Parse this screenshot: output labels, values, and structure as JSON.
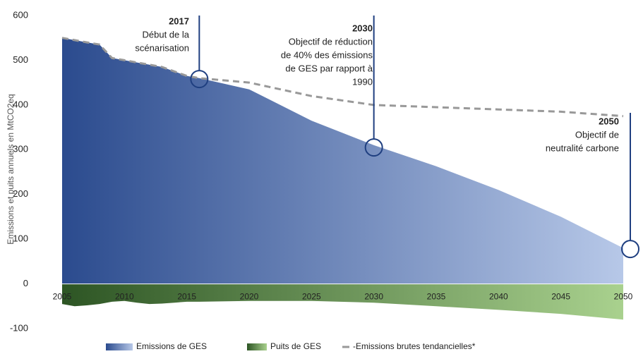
{
  "chart_data": {
    "type": "area",
    "y_axis_label": "Emissions et puits annuels en MtCO2eq",
    "x": [
      2005,
      2006,
      2007,
      2008,
      2009,
      2010,
      2011,
      2012,
      2013,
      2014,
      2015,
      2016,
      2020,
      2025,
      2030,
      2035,
      2040,
      2045,
      2050
    ],
    "series": [
      {
        "name": "Emissions de GES",
        "colors": [
          "#2b4b8e",
          "#b7c8e8"
        ],
        "style": "area",
        "values": [
          550,
          545,
          540,
          535,
          505,
          500,
          495,
          490,
          485,
          475,
          465,
          460,
          435,
          365,
          310,
          263,
          210,
          150,
          80
        ]
      },
      {
        "name": "Puits de GES",
        "colors": [
          "#2d5524",
          "#a9d18e"
        ],
        "style": "area",
        "values": [
          -45,
          -50,
          -48,
          -45,
          -40,
          -38,
          -42,
          -45,
          -44,
          -42,
          -40,
          -40,
          -38,
          -38,
          -42,
          -50,
          -58,
          -67,
          -80
        ]
      },
      {
        "name": "-Emissions brutes tendancielles*",
        "color": "#999999",
        "style": "dashed",
        "values": [
          550,
          545,
          540,
          535,
          505,
          500,
          495,
          490,
          485,
          475,
          465,
          460,
          450,
          420,
          400,
          395,
          390,
          385,
          375
        ]
      }
    ],
    "annotations": [
      {
        "year": "2017",
        "lines": [
          "Début de la",
          "scénarisation"
        ],
        "x": 2016,
        "y": 458
      },
      {
        "year": "2030",
        "lines": [
          "Objectif de réduction",
          "de 40% des émissions",
          "de GES par rapport à",
          "1990"
        ],
        "x": 2030,
        "y": 305
      },
      {
        "year": "2050",
        "lines": [
          "Objectif de",
          "neutralité carbone"
        ],
        "x": 2050,
        "y": 78
      }
    ],
    "xlim": [
      2005,
      2050
    ],
    "xticks": [
      2005,
      2010,
      2015,
      2020,
      2025,
      2030,
      2035,
      2040,
      2045,
      2050
    ],
    "ylim": [
      -100,
      600
    ],
    "yticks": [
      -100,
      0,
      100,
      200,
      300,
      400,
      500,
      600
    ]
  }
}
